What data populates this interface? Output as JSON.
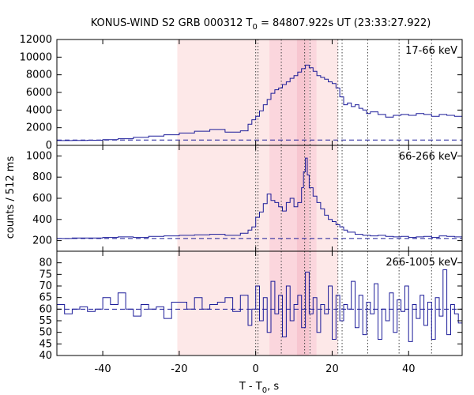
{
  "chart_data": {
    "type": "line",
    "title_prefix": "KONUS-WIND S2 GRB 000312 T",
    "title_sub": "0",
    "title_suffix": " = 84807.922s UT (23:33:27.922)",
    "xlabel_prefix": "T - T",
    "xlabel_sub": "0",
    "xlabel_suffix": ", s",
    "ylabel": "counts / 512 ms",
    "xlim": [
      -52,
      54
    ],
    "xticks": [
      -40,
      -20,
      0,
      20,
      40
    ],
    "shaded_regions": [
      {
        "from": -20.5,
        "to": 21.5,
        "color": "#fde8e8"
      },
      {
        "from": 3.6,
        "to": 15.9,
        "color": "#fbd6dd"
      },
      {
        "from": 10.8,
        "to": 13.9,
        "color": "#f7c6d0"
      }
    ],
    "vlines": [
      0,
      0.6,
      6.7,
      12.8,
      14.2,
      21.5,
      22.6,
      29.3,
      37.5,
      46.0
    ],
    "line_color": "#1c1c99",
    "panels": [
      {
        "label": "17-66 keV",
        "ylim": [
          0,
          12000
        ],
        "yticks": [
          0,
          2000,
          4000,
          6000,
          8000,
          10000,
          12000
        ],
        "background_level": 600,
        "x": [
          -52,
          -48,
          -44,
          -40,
          -36,
          -32,
          -28,
          -24,
          -20,
          -16,
          -12,
          -8,
          -4,
          -2,
          -1,
          0,
          1,
          2,
          3,
          4,
          5,
          6,
          7,
          8,
          9,
          10,
          11,
          12,
          13,
          14,
          15,
          16,
          17,
          18,
          19,
          20,
          21,
          22,
          23,
          24,
          25,
          26,
          27,
          28,
          29,
          30,
          32,
          34,
          36,
          38,
          40,
          42,
          44,
          46,
          48,
          50,
          52,
          54
        ],
        "y": [
          550,
          560,
          580,
          650,
          750,
          900,
          1050,
          1200,
          1400,
          1600,
          1800,
          1500,
          1650,
          2400,
          2900,
          3300,
          3900,
          4600,
          5200,
          5900,
          6300,
          6500,
          6900,
          7200,
          7600,
          7900,
          8300,
          8700,
          9100,
          8800,
          8400,
          7900,
          7700,
          7500,
          7200,
          7000,
          6500,
          5500,
          4600,
          4800,
          4400,
          4600,
          4200,
          4000,
          3600,
          3800,
          3500,
          3200,
          3400,
          3500,
          3400,
          3600,
          3500,
          3300,
          3500,
          3400,
          3300,
          3200
        ]
      },
      {
        "label": "66-266 keV",
        "ylim": [
          100,
          1100
        ],
        "yticks": [
          200,
          400,
          600,
          800,
          1000
        ],
        "background_level": 220,
        "x": [
          -52,
          -48,
          -44,
          -40,
          -36,
          -32,
          -28,
          -24,
          -20,
          -16,
          -12,
          -8,
          -4,
          -2,
          -1,
          0,
          1,
          2,
          3,
          4,
          5,
          6,
          7,
          8,
          9,
          10,
          11,
          12,
          12.5,
          13,
          13.5,
          14,
          15,
          16,
          17,
          18,
          19,
          20,
          21,
          22,
          23,
          24,
          26,
          28,
          30,
          32,
          34,
          36,
          38,
          40,
          42,
          44,
          46,
          48,
          50,
          52,
          54
        ],
        "y": [
          220,
          225,
          225,
          230,
          235,
          230,
          240,
          245,
          250,
          255,
          260,
          250,
          270,
          300,
          330,
          420,
          470,
          550,
          640,
          580,
          560,
          520,
          480,
          560,
          600,
          520,
          560,
          700,
          850,
          980,
          820,
          700,
          620,
          560,
          500,
          440,
          400,
          380,
          350,
          330,
          300,
          280,
          260,
          250,
          245,
          250,
          240,
          235,
          240,
          230,
          235,
          240,
          230,
          245,
          240,
          235,
          250
        ]
      },
      {
        "label": "266-1005 keV",
        "ylim": [
          40,
          85
        ],
        "yticks": [
          40,
          45,
          50,
          55,
          60,
          65,
          70,
          75,
          80
        ],
        "background_level": 60,
        "x": [
          -52,
          -50,
          -48,
          -46,
          -44,
          -42,
          -40,
          -38,
          -36,
          -34,
          -32,
          -30,
          -28,
          -26,
          -24,
          -22,
          -20,
          -18,
          -16,
          -14,
          -12,
          -10,
          -8,
          -6,
          -4,
          -2,
          -1,
          0,
          1,
          2,
          3,
          4,
          5,
          6,
          7,
          8,
          9,
          10,
          11,
          12,
          13,
          14,
          15,
          16,
          17,
          18,
          19,
          20,
          21,
          22,
          23,
          24,
          25,
          26,
          27,
          28,
          29,
          30,
          31,
          32,
          33,
          34,
          35,
          36,
          37,
          38,
          39,
          40,
          41,
          42,
          43,
          44,
          45,
          46,
          47,
          48,
          49,
          50,
          51,
          52,
          53,
          54
        ],
        "y": [
          62,
          58,
          60,
          61,
          59,
          60,
          65,
          62,
          67,
          60,
          57,
          62,
          60,
          61,
          56,
          63,
          63,
          60,
          65,
          60,
          62,
          63,
          65,
          59,
          66,
          53,
          60,
          70,
          55,
          65,
          50,
          72,
          58,
          66,
          48,
          70,
          55,
          62,
          66,
          52,
          76,
          58,
          65,
          50,
          62,
          58,
          70,
          47,
          66,
          55,
          62,
          60,
          72,
          52,
          66,
          49,
          63,
          58,
          71,
          47,
          60,
          55,
          67,
          50,
          64,
          59,
          70,
          46,
          62,
          56,
          66,
          53,
          63,
          47,
          65,
          57,
          77,
          49,
          62,
          58,
          54,
          60
        ]
      }
    ]
  }
}
